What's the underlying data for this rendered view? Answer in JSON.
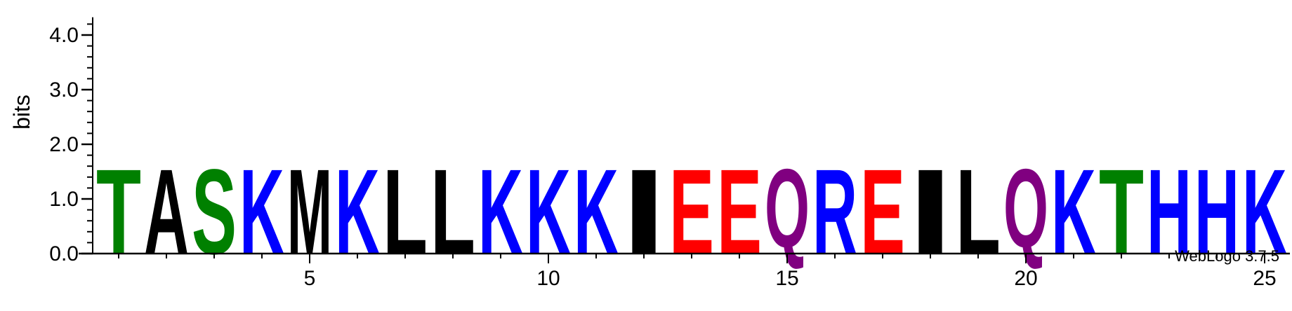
{
  "credit": "WebLogo 3.7.5",
  "chart_data": {
    "type": "sequence-logo",
    "ylabel": "bits",
    "ylim": [
      0,
      4.3
    ],
    "y_ticks": [
      "0.0",
      "1.0",
      "2.0",
      "3.0",
      "4.0"
    ],
    "x_ticks": [
      "5",
      "10",
      "15",
      "20",
      "25"
    ],
    "positions": [
      1,
      2,
      3,
      4,
      5,
      6,
      7,
      8,
      9,
      10,
      11,
      12,
      13,
      14,
      15,
      16,
      17,
      18,
      19,
      20,
      21,
      22,
      23,
      24,
      25
    ],
    "letters": [
      "T",
      "A",
      "S",
      "K",
      "M",
      "K",
      "L",
      "L",
      "K",
      "K",
      "K",
      "I",
      "E",
      "E",
      "Q",
      "R",
      "E",
      "I",
      "L",
      "Q",
      "K",
      "T",
      "H",
      "H",
      "K"
    ],
    "bits": [
      1.62,
      1.62,
      1.62,
      1.62,
      1.62,
      1.62,
      1.62,
      1.62,
      1.62,
      1.62,
      1.62,
      1.62,
      1.62,
      1.62,
      1.62,
      1.62,
      1.62,
      1.62,
      1.62,
      1.62,
      1.62,
      1.62,
      1.62,
      1.62,
      1.62
    ],
    "grid": false,
    "colors": {
      "T": "#008000",
      "S": "#008000",
      "A": "#000000",
      "M": "#000000",
      "L": "#000000",
      "I": "#000000",
      "K": "#0000ff",
      "R": "#0000ff",
      "H": "#0000ff",
      "E": "#ff0000",
      "Q": "#800080"
    }
  }
}
